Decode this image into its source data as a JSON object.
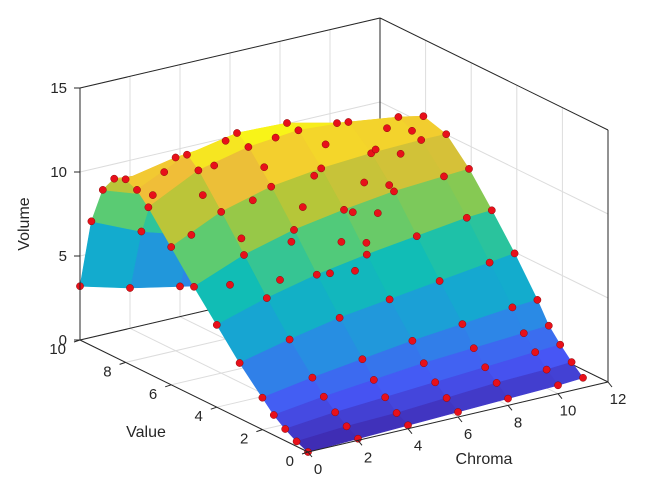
{
  "chart_data": {
    "type": "surface3d",
    "title": "",
    "xlabel": "Chroma",
    "ylabel": "Value",
    "zlabel": "Volume",
    "xlim": [
      0,
      12
    ],
    "ylim": [
      0,
      10
    ],
    "zlim": [
      0,
      15
    ],
    "x_ticks": [
      "0",
      "2",
      "4",
      "6",
      "8",
      "10",
      "12"
    ],
    "y_ticks": [
      "0",
      "2",
      "4",
      "6",
      "8",
      "10"
    ],
    "z_ticks": [
      "0",
      "5",
      "10",
      "15"
    ],
    "grid": true,
    "colormap": "parula",
    "point_color": "#e8101a",
    "surface": {
      "chroma": [
        0,
        2,
        4,
        6,
        8,
        10,
        11
      ],
      "value": [
        0,
        0.5,
        1,
        1.5,
        2,
        3,
        4,
        5,
        6,
        7,
        7.5,
        8,
        8.5,
        9,
        9.5,
        10
      ],
      "volume": [
        [
          0.0,
          0.1,
          0.2,
          0.3,
          0.4,
          0.5,
          0.6
        ],
        [
          0.3,
          0.5,
          0.6,
          0.8,
          1.0,
          1.1,
          1.2
        ],
        [
          0.7,
          1.0,
          1.2,
          1.4,
          1.6,
          1.8,
          1.9
        ],
        [
          1.2,
          1.6,
          1.9,
          2.2,
          2.4,
          2.6,
          2.7
        ],
        [
          1.9,
          2.4,
          2.8,
          3.2,
          3.5,
          3.8,
          3.9
        ],
        [
          3.3,
          4.0,
          4.6,
          5.0,
          5.4,
          5.8,
          6.0
        ],
        [
          4.9,
          5.8,
          6.5,
          7.0,
          7.4,
          7.8,
          7.9
        ],
        [
          6.5,
          7.7,
          8.5,
          9.0,
          9.4,
          9.6,
          9.7
        ],
        [
          8.2,
          9.6,
          10.4,
          10.8,
          11.0,
          11.1,
          11.1
        ],
        [
          9.9,
          11.4,
          12.1,
          12.4,
          12.2,
          11.8,
          11.5
        ],
        [
          10.6,
          12.0,
          12.6,
          12.5,
          11.8,
          10.8,
          10.3
        ],
        [
          10.9,
          11.5,
          11.8,
          11.3,
          10.2,
          9.2,
          8.6
        ],
        [
          10.6,
          10.3,
          10.0,
          9.2,
          8.0,
          6.9,
          6.4
        ],
        [
          9.6,
          8.6,
          7.9,
          6.9,
          5.8,
          4.8,
          4.4
        ],
        [
          7.4,
          6.1,
          5.2,
          4.3,
          3.4,
          2.7,
          2.3
        ],
        [
          3.2,
          2.4,
          1.8,
          1.2,
          0.8,
          0.5,
          0.3
        ]
      ]
    }
  }
}
